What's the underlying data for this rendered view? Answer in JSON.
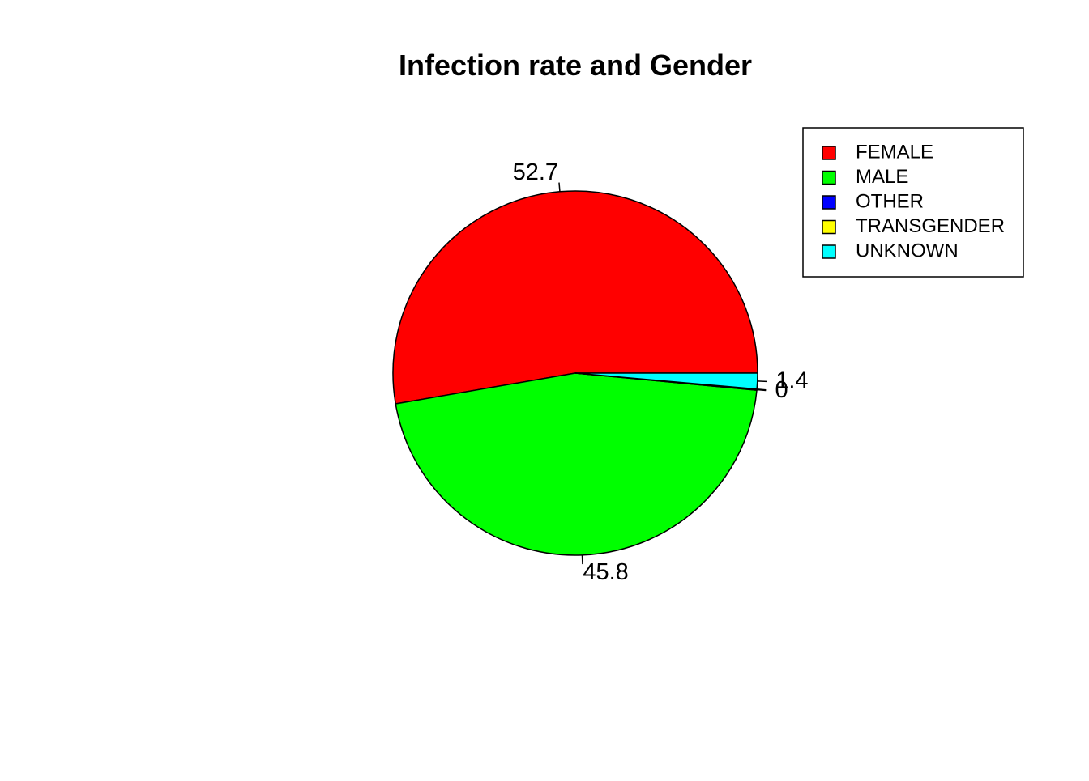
{
  "chart_data": {
    "type": "pie",
    "title": "Infection rate and Gender",
    "slices": [
      {
        "label": "FEMALE",
        "value": 52.7,
        "display": "52.7",
        "color": "#ff0000"
      },
      {
        "label": "MALE",
        "value": 45.8,
        "display": "45.8",
        "color": "#00ff00"
      },
      {
        "label": "OTHER",
        "value": 0.1,
        "display": "0",
        "color": "#0000ff"
      },
      {
        "label": "TRANSGENDER",
        "value": 0.0,
        "display": "0",
        "color": "#ffff00"
      },
      {
        "label": "UNKNOWN",
        "value": 1.4,
        "display": "1.4",
        "color": "#00ffff"
      }
    ],
    "legend_position": "top-right",
    "start": "counterclockwise from 3 o'clock"
  }
}
